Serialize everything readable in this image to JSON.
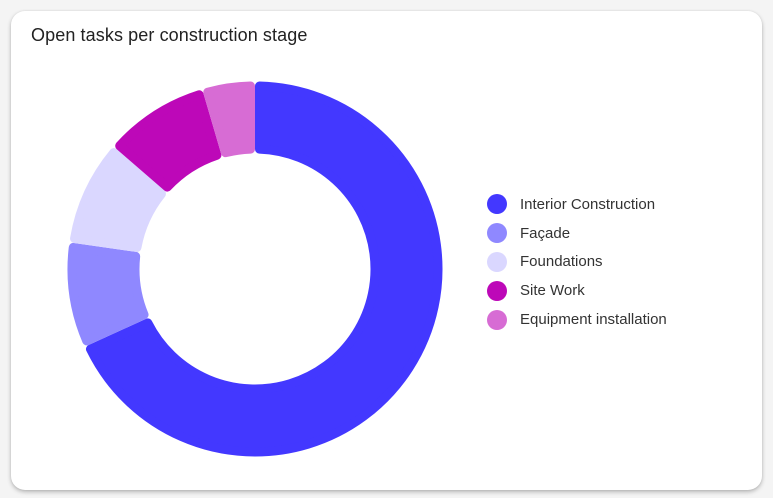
{
  "card": {
    "title": "Open tasks per construction stage"
  },
  "chart_data": {
    "type": "pie",
    "subtype": "donut",
    "title": "Open tasks per construction stage",
    "categories": [
      "Interior Construction",
      "Façade",
      "Foundations",
      "Site Work",
      "Equipment installation"
    ],
    "values": [
      15,
      2,
      2,
      2,
      1
    ],
    "colors": [
      "#4338ff",
      "#8f88ff",
      "#dad7ff",
      "#bd08b8",
      "#d76cd4"
    ],
    "legend_position": "right",
    "start_angle_deg": 0,
    "direction": "counterclockwise"
  },
  "legend": {
    "items": [
      {
        "label": "Interior Construction",
        "color": "#4338ff"
      },
      {
        "label": "Façade",
        "color": "#8f88ff"
      },
      {
        "label": "Foundations",
        "color": "#dad7ff"
      },
      {
        "label": "Site Work",
        "color": "#bd08b8"
      },
      {
        "label": "Equipment installation",
        "color": "#d76cd4"
      }
    ]
  }
}
